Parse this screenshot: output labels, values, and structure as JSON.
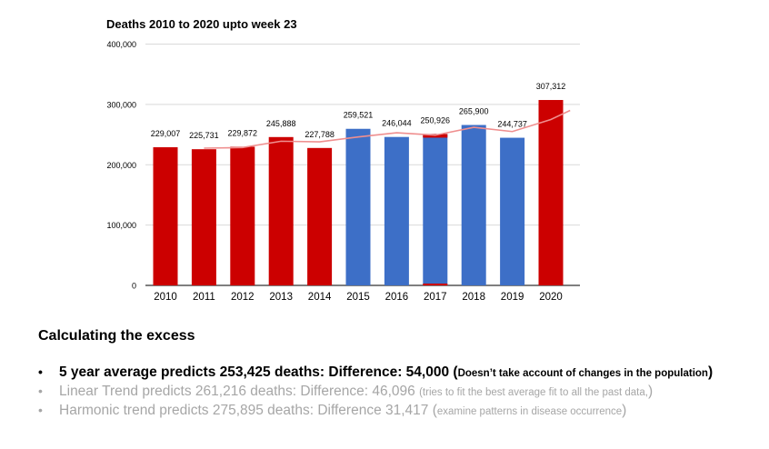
{
  "chart_data": {
    "type": "bar",
    "title": "Deaths 2010 to 2020 upto week 23",
    "categories": [
      "2010",
      "2011",
      "2012",
      "2013",
      "2014",
      "2015",
      "2016",
      "2017",
      "2018",
      "2019",
      "2020"
    ],
    "values": [
      229007,
      225731,
      229872,
      245888,
      227788,
      259521,
      246044,
      250926,
      265900,
      244737,
      307312
    ],
    "data_labels": [
      "229,007",
      "225,731",
      "229,872",
      "245,888",
      "227,788",
      "259,521",
      "246,044",
      "250,926",
      "265,900",
      "244,737",
      "307,312"
    ],
    "bar_colors": [
      "#cc0000",
      "#cc0000",
      "#cc0000",
      "#cc0000",
      "#cc0000",
      "#3d6fc7",
      "#3d6fc7",
      "#3d6fc7",
      "#3d6fc7",
      "#3d6fc7",
      "#cc0000"
    ],
    "overlay_bars": [
      {
        "category": "2017",
        "value": 250926,
        "color": "#cc0000"
      }
    ],
    "trend_line": {
      "color": "#ef8f8f",
      "points": [
        {
          "x": "2011",
          "y": 227500
        },
        {
          "x": "2012",
          "y": 228500
        },
        {
          "x": "2013",
          "y": 239000
        },
        {
          "x": "2014",
          "y": 238000
        },
        {
          "x": "2015",
          "y": 246000
        },
        {
          "x": "2016",
          "y": 253000
        },
        {
          "x": "2017",
          "y": 249000
        },
        {
          "x": "2018",
          "y": 262000
        },
        {
          "x": "2019",
          "y": 255000
        },
        {
          "x": "2020",
          "y": 275000
        },
        {
          "x": "2020.5",
          "y": 290000
        }
      ]
    },
    "ylim": [
      0,
      400000
    ],
    "yticks": [
      0,
      100000,
      200000,
      300000,
      400000
    ],
    "ytick_labels": [
      "0",
      "100,000",
      "200,000",
      "300,000",
      "400,000"
    ],
    "grid": true,
    "xlabel": "",
    "ylabel": ""
  },
  "heading": "Calculating the  excess",
  "bullets": [
    {
      "dot": "•",
      "main": "5 year average predicts 253,425 deaths: Difference:  54,000 ",
      "paren_open": "(",
      "note": "Doesn’t take account of changes in the population",
      "paren_close": ")",
      "state": "active"
    },
    {
      "dot": "•",
      "main": "Linear Trend predicts 261,216 deaths: Difference: 46,096 ",
      "paren_open": "",
      "note": "(tries to fit  the best average fit to all the past data,",
      "paren_close": ")",
      "state": "dim"
    },
    {
      "dot": "•",
      "main": "Harmonic trend predicts  275,895 deaths: Difference 31,417  ",
      "paren_open": "(",
      "note": "examine  patterns in disease occurrence",
      "paren_close": ")",
      "state": "dim"
    }
  ],
  "colors": {
    "axis": "#333333",
    "grid": "#d9d9d9",
    "text": "#000000",
    "dim_text": "#a6a6a6"
  }
}
